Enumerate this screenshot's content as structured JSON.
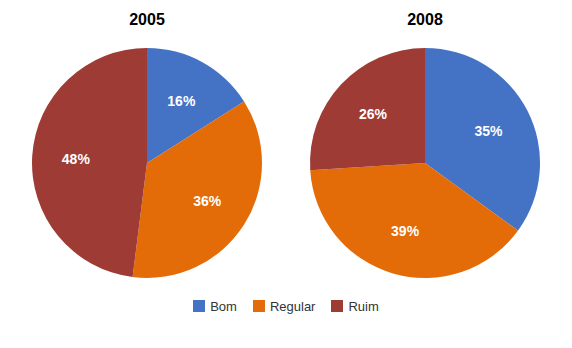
{
  "chart_data": [
    {
      "type": "pie",
      "title": "2005",
      "categories": [
        "Bom",
        "Regular",
        "Ruim"
      ],
      "values": [
        16,
        36,
        48
      ],
      "value_labels": [
        "16%",
        "36%",
        "48%"
      ],
      "colors": [
        "#4472C4",
        "#E36C09",
        "#9E3B35"
      ],
      "data_labels": true,
      "legend": "bottom"
    },
    {
      "type": "pie",
      "title": "2008",
      "categories": [
        "Bom",
        "Regular",
        "Ruim"
      ],
      "values": [
        35,
        39,
        26
      ],
      "value_labels": [
        "35%",
        "39%",
        "26%"
      ],
      "colors": [
        "#4472C4",
        "#E36C09",
        "#9E3B35"
      ],
      "data_labels": true,
      "legend": "bottom"
    }
  ]
}
